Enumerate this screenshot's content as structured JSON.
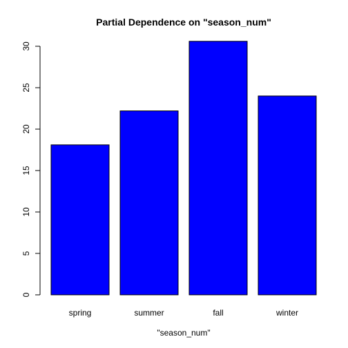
{
  "chart_data": {
    "type": "bar",
    "title": "Partial Dependence on \"season_num\"",
    "xlabel": "\"season_num\"",
    "ylabel": "",
    "categories": [
      "spring",
      "summer",
      "fall",
      "winter"
    ],
    "values": [
      18.1,
      22.2,
      30.6,
      24.0
    ],
    "ylim": [
      0,
      30
    ],
    "yticks": [
      0,
      5,
      10,
      15,
      20,
      25,
      30
    ],
    "bar_color": "#0000ff",
    "bar_border_color": "#000000",
    "grid": false,
    "legend": "none"
  }
}
